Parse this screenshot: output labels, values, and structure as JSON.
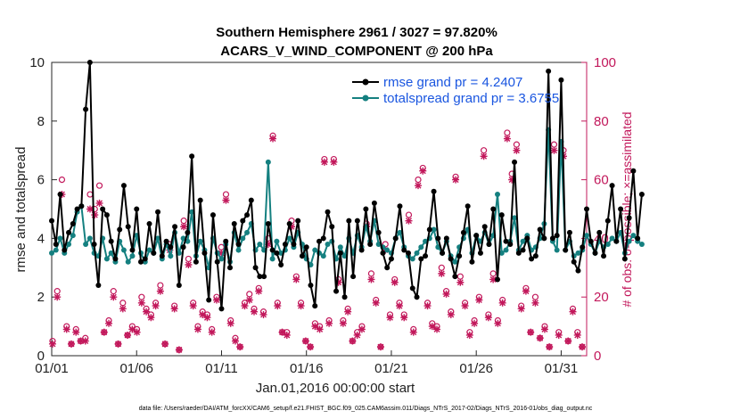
{
  "chart_data": {
    "type": "line",
    "title": "Southern Hemisphere 2961 / 3027 = 97.820%",
    "subtitle": "ACARS_V_WIND_COMPONENT @ 200 hPa",
    "xlabel": "Jan.01,2016 00:00:00 start",
    "ylabel": "rmse and totalspread",
    "ylabel_right": "# of obs: o=possible; ×=assimilated",
    "x_ticks": [
      "01/01",
      "01/06",
      "01/11",
      "01/16",
      "01/21",
      "01/26",
      "01/31"
    ],
    "y_ticks": [
      "0",
      "2",
      "4",
      "6",
      "8",
      "10"
    ],
    "y_ticks_right": [
      "0",
      "20",
      "40",
      "60",
      "80",
      "100"
    ],
    "xlim": [
      0,
      31.5
    ],
    "ylim": [
      0,
      10
    ],
    "ylim_right": [
      0,
      100
    ],
    "colors": {
      "rmse": "#000000",
      "spread": "#158080",
      "obs": "#c2185b",
      "legend_text": "#1a56e0"
    },
    "series": [
      {
        "name": "rmse grand pr = 4.2407",
        "values": [
          4.6,
          3.8,
          5.5,
          3.6,
          4.2,
          4.5,
          5.0,
          5.1,
          8.4,
          10.0,
          3.8,
          2.4,
          5.0,
          4.8,
          3.9,
          3.3,
          4.3,
          5.8,
          4.4,
          3.6,
          5.0,
          3.2,
          3.3,
          4.5,
          3.5,
          4.9,
          3.4,
          3.9,
          3.7,
          4.4,
          2.4,
          3.7,
          4.2,
          6.8,
          3.2,
          5.3,
          3.5,
          1.9,
          4.8,
          3.2,
          1.6,
          3.9,
          3.0,
          4.5,
          3.8,
          4.6,
          4.8,
          5.3,
          3.0,
          2.7,
          2.7,
          4.5,
          3.6,
          3.5,
          3.1,
          3.8,
          4.5,
          3.8,
          4.6,
          3.4,
          3.7,
          2.4,
          1.7,
          3.9,
          4.0,
          4.9,
          4.4,
          2.2,
          3.5,
          2.0,
          4.6,
          2.7,
          4.6,
          3.6,
          5.0,
          3.8,
          5.2,
          4.2,
          3.5,
          3.0,
          3.3,
          4.0,
          5.1,
          3.6,
          3.5,
          2.3,
          2.0,
          3.3,
          3.4,
          4.3,
          5.6,
          4.0,
          3.5,
          4.0,
          3.3,
          2.7,
          3.4,
          4.2,
          5.1,
          3.2,
          4.1,
          3.5,
          4.4,
          3.8,
          5.0,
          2.6,
          4.8,
          3.9,
          3.8,
          6.6,
          3.5,
          3.6,
          4.0,
          3.3,
          3.4,
          4.3,
          4.0,
          9.7,
          4.0,
          4.1,
          9.4,
          3.6,
          4.2,
          3.2,
          2.9,
          3.7,
          5.0,
          3.9,
          3.5,
          4.2,
          3.4,
          4.6,
          5.8,
          3.9,
          5.0,
          3.3,
          4.7,
          6.3,
          4.0,
          5.5
        ],
        "x_start": 0.0,
        "x_step": 0.25
      },
      {
        "name": "totalspread grand pr = 3.6755",
        "values": [
          3.5,
          3.6,
          4.0,
          3.5,
          3.8,
          4.1,
          4.9,
          5.1,
          3.8,
          4.0,
          3.5,
          3.4,
          4.0,
          3.3,
          3.5,
          3.2,
          3.9,
          3.6,
          3.2,
          3.4,
          4.1,
          3.5,
          3.2,
          3.6,
          3.5,
          4.0,
          3.3,
          3.8,
          3.4,
          4.2,
          3.5,
          4.0,
          3.9,
          4.9,
          3.4,
          3.9,
          3.6,
          3.0,
          4.0,
          3.5,
          3.3,
          3.8,
          3.2,
          4.2,
          3.6,
          4.0,
          4.2,
          4.5,
          3.6,
          3.8,
          3.6,
          6.6,
          3.3,
          3.9,
          3.5,
          3.6,
          4.0,
          3.7,
          4.2,
          3.8,
          3.3,
          3.1,
          3.6,
          3.5,
          3.4,
          3.8,
          3.9,
          3.3,
          3.7,
          3.4,
          4.0,
          3.5,
          4.1,
          3.7,
          4.4,
          3.9,
          4.6,
          3.8,
          3.7,
          3.6,
          3.5,
          4.0,
          4.2,
          3.7,
          3.4,
          3.3,
          3.5,
          3.7,
          3.9,
          4.0,
          4.3,
          3.7,
          3.5,
          3.9,
          3.4,
          3.2,
          3.7,
          4.0,
          4.3,
          3.5,
          4.1,
          3.9,
          4.2,
          3.8,
          4.1,
          5.5,
          3.5,
          3.6,
          3.9,
          4.7,
          3.6,
          3.9,
          4.1,
          3.6,
          3.7,
          4.0,
          4.5,
          7.7,
          3.9,
          3.6,
          7.3,
          3.6,
          3.9,
          3.4,
          3.5,
          3.6,
          4.1,
          3.8,
          3.5,
          3.9,
          3.7,
          3.8,
          4.0,
          3.9,
          4.2,
          3.5,
          3.9,
          4.1,
          3.9,
          3.8
        ],
        "x_start": 0.0,
        "x_step": 0.25
      }
    ],
    "obs_possible": [
      5,
      22,
      60,
      10,
      4,
      9,
      5,
      6,
      55,
      50,
      58,
      8,
      12,
      22,
      4,
      18,
      7,
      10,
      9,
      20,
      16,
      14,
      18,
      24,
      4,
      38,
      17,
      2,
      46,
      33,
      18,
      10,
      15,
      14,
      9,
      20,
      37,
      55,
      12,
      6,
      3,
      18,
      21,
      16,
      23,
      15,
      40,
      75,
      18,
      8,
      8,
      46,
      27,
      18,
      5,
      3,
      11,
      10,
      67,
      12,
      67,
      26,
      12,
      16,
      5,
      8,
      10,
      45,
      28,
      19,
      3,
      38,
      14,
      26,
      18,
      14,
      48,
      9,
      60,
      64,
      18,
      11,
      10,
      30,
      22,
      15,
      61,
      27,
      18,
      8,
      12,
      20,
      70,
      14,
      28,
      12,
      19,
      76,
      62,
      72,
      17,
      23,
      8,
      20,
      6,
      10,
      3,
      72,
      8,
      70,
      5,
      16,
      8,
      3
    ],
    "obs_assimilated": [
      4,
      20,
      55,
      9,
      4,
      8,
      5,
      5,
      50,
      48,
      52,
      8,
      11,
      20,
      4,
      16,
      7,
      9,
      8,
      18,
      15,
      13,
      17,
      22,
      4,
      36,
      16,
      2,
      44,
      31,
      17,
      9,
      14,
      13,
      8,
      19,
      35,
      53,
      11,
      5,
      3,
      17,
      19,
      15,
      22,
      14,
      38,
      74,
      17,
      8,
      7,
      44,
      26,
      17,
      5,
      3,
      10,
      9,
      66,
      11,
      66,
      25,
      11,
      15,
      5,
      7,
      9,
      44,
      26,
      18,
      3,
      36,
      13,
      25,
      17,
      13,
      46,
      8,
      58,
      63,
      17,
      10,
      9,
      28,
      21,
      14,
      60,
      25,
      17,
      7,
      11,
      19,
      68,
      13,
      26,
      11,
      18,
      74,
      60,
      70,
      16,
      22,
      8,
      18,
      6,
      9,
      3,
      70,
      7,
      68,
      5,
      15,
      7,
      3
    ],
    "obs_x_start": 0.05,
    "obs_x_step": 0.276,
    "footer": "data file: /Users/raeder/DAI/ATM_forcXX/CAM6_setup/f.e21.FHIST_BGC.f09_025.CAM6assim.011/Diags_NTrS_2017-02/Diags_NTrS_2016-01/obs_diag_output.nc"
  }
}
